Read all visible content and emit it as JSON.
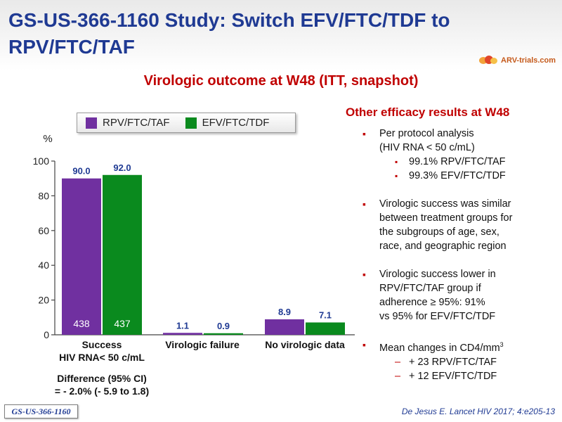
{
  "title": "GS-US-366-1160 Study: Switch EFV/FTC/TDF to RPV/FTC/TAF",
  "logo_text": "ARV-trials.com",
  "subtitle": "Virologic outcome at W48 (ITT, snapshot)",
  "colors": {
    "title": "#1f3a93",
    "accent": "#c00000",
    "rpv": "#7030a0",
    "efv": "#0a8a1e"
  },
  "chart_data": {
    "type": "bar",
    "ylabel": "%",
    "ylim": [
      0,
      100
    ],
    "yticks": [
      "0",
      "20",
      "40",
      "60",
      "80",
      "100"
    ],
    "grid": false,
    "categories": [
      {
        "line1": "Success",
        "line2": "HIV RNA< 50 c/mL"
      },
      {
        "line1": "Virologic failure",
        "line2": ""
      },
      {
        "line1": "No virologic data",
        "line2": ""
      }
    ],
    "series": [
      {
        "name": "RPV/FTC/TAF",
        "values": [
          90.0,
          1.1,
          8.9
        ],
        "labels": [
          "90.0",
          "1.1",
          "8.9"
        ],
        "n": "438"
      },
      {
        "name": "EFV/FTC/TDF",
        "values": [
          92.0,
          0.9,
          7.1
        ],
        "labels": [
          "92.0",
          "0.9",
          "7.1"
        ],
        "n": "437"
      }
    ],
    "annotation_line1": "Difference (95% CI)",
    "annotation_line2": "= - 2.0% (- 5.9 to 1.8)"
  },
  "right_panel": {
    "title": "Other efficacy results at W48",
    "b1": "Per protocol analysis",
    "b1_line2": "(HIV RNA < 50 c/mL)",
    "b1_s1": "99.1% RPV/FTC/TAF",
    "b1_s2": "99.3% EFV/FTC/TDF",
    "b2_l1": "Virologic success was similar",
    "b2_l2": "between treatment groups for",
    "b2_l3": "the subgroups of age, sex,",
    "b2_l4": "race, and geographic region",
    "b3_l1": "Virologic success lower in",
    "b3_l2": "RPV/FTC/TAF  group if",
    "b3_l3": "adherence ≥ 95%: 91%",
    "b3_l4": "vs 95% for EFV/FTC/TDF",
    "b4": "Mean changes in CD4/mm",
    "b4_sup": "3",
    "b4_d1": "+ 23 RPV/FTC/TAF",
    "b4_d2": "+ 12 EFV/FTC/TDF"
  },
  "footer_tag": "GS-US-366-1160",
  "citation": "De Jesus E. Lancet HIV 2017; 4:e205-13"
}
